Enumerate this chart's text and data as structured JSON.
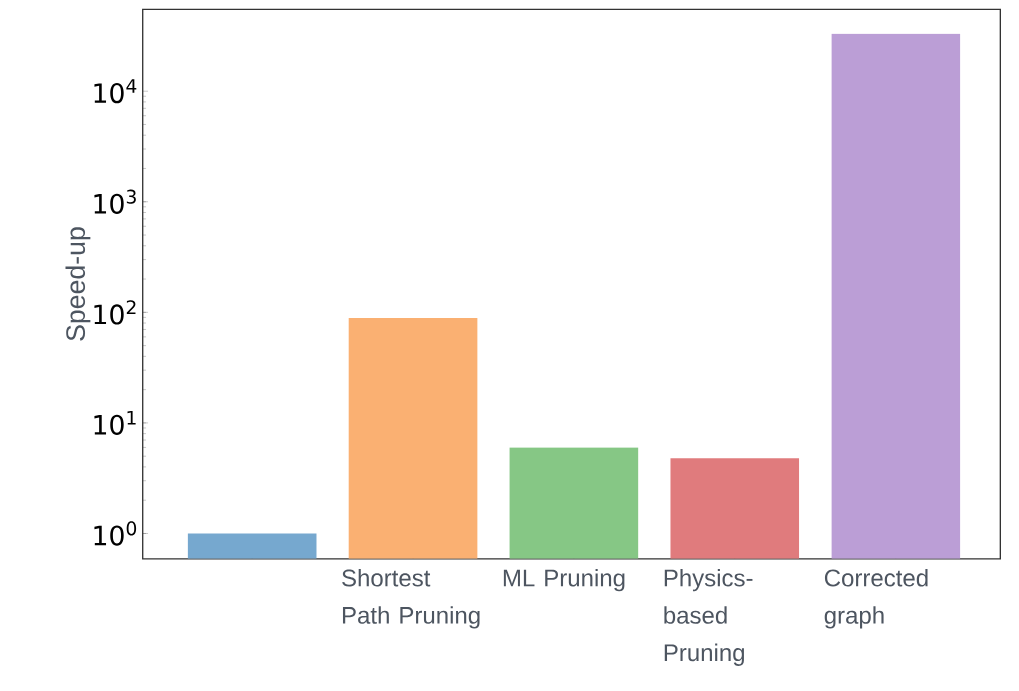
{
  "chart_data": {
    "type": "bar",
    "ylabel": "Speed-up",
    "categories": [
      null,
      "Shortest Path Pruning",
      "ML Pruning",
      "Physics-based Pruning",
      "Corrected graph"
    ],
    "values": [
      1,
      89,
      6.0,
      4.8,
      33000
    ],
    "colors": [
      "#76a8cf",
      "#fab072",
      "#86c785",
      "#e07b7d",
      "#bb9ed6"
    ],
    "log": true,
    "ylim": [
      0.59,
      55000
    ],
    "yticks": [
      {
        "value": 1,
        "label": "10$^{0}$"
      },
      {
        "value": 10,
        "label": "10$^{1}$"
      },
      {
        "value": 100,
        "label": "10$^{2}$"
      },
      {
        "value": 1000,
        "label": "10$^{3}$"
      },
      {
        "value": 10000,
        "label": "10$^{4}$"
      }
    ],
    "grid": false
  }
}
